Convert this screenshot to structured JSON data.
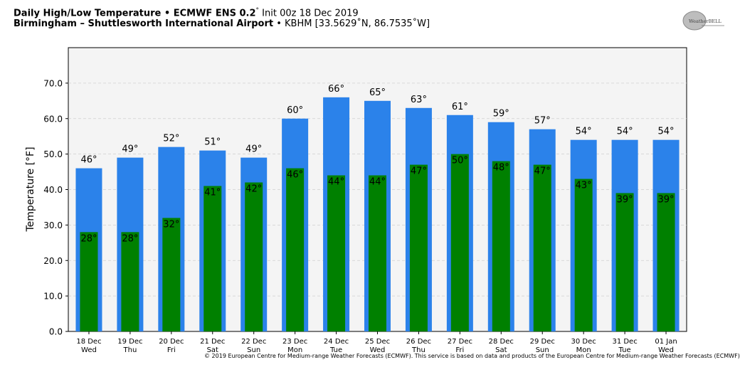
{
  "header": {
    "title_bold": "Daily High/Low Temperature • ECMWF ENS 0.2",
    "title_deg": "°",
    "title_init": "Init 00z 18 Dec 2019",
    "location_bold": "Birmingham – Shuttlesworth International Airport",
    "location_rest": "• KBHM [33.5629˚N, 86.7535˚W]"
  },
  "logo": {
    "text": "WeatherBELL"
  },
  "copyright": "© 2019 European Centre for Medium-range Weather Forecasts (ECMWF). This service is based on data and products of the European Centre for Medium-range Weather Forecasts (ECMWF)",
  "chart_data": {
    "type": "bar",
    "title": "Daily High/Low Temperature • ECMWF ENS 0.2° Init 00z 18 Dec 2019",
    "ylabel": "Temperature [°F]",
    "xlabel": "",
    "ylim": [
      0,
      80
    ],
    "yticks": [
      "0.0",
      "10.0",
      "20.0",
      "30.0",
      "40.0",
      "50.0",
      "60.0",
      "70.0"
    ],
    "grid": true,
    "categories": [
      {
        "date": "18 Dec",
        "day": "Wed"
      },
      {
        "date": "19 Dec",
        "day": "Thu"
      },
      {
        "date": "20 Dec",
        "day": "Fri"
      },
      {
        "date": "21 Dec",
        "day": "Sat"
      },
      {
        "date": "22 Dec",
        "day": "Sun"
      },
      {
        "date": "23 Dec",
        "day": "Mon"
      },
      {
        "date": "24 Dec",
        "day": "Tue"
      },
      {
        "date": "25 Dec",
        "day": "Wed"
      },
      {
        "date": "26 Dec",
        "day": "Thu"
      },
      {
        "date": "27 Dec",
        "day": "Fri"
      },
      {
        "date": "28 Dec",
        "day": "Sat"
      },
      {
        "date": "29 Dec",
        "day": "Sun"
      },
      {
        "date": "30 Dec",
        "day": "Mon"
      },
      {
        "date": "31 Dec",
        "day": "Tue"
      },
      {
        "date": "01 Jan",
        "day": "Wed"
      }
    ],
    "series": [
      {
        "key": "high",
        "color": "#2b82ea",
        "values": [
          46,
          49,
          52,
          51,
          49,
          60,
          66,
          65,
          63,
          61,
          59,
          57,
          54,
          54,
          54
        ],
        "labels": [
          "46°",
          "49°",
          "52°",
          "51°",
          "49°",
          "60°",
          "66°",
          "65°",
          "63°",
          "61°",
          "59°",
          "57°",
          "54°",
          "54°",
          "54°"
        ]
      },
      {
        "key": "low",
        "color": "#008000",
        "values": [
          28,
          28,
          32,
          41,
          42,
          46,
          44,
          44,
          47,
          50,
          48,
          47,
          43,
          39,
          39
        ],
        "labels": [
          "28°",
          "28°",
          "32°",
          "41°",
          "42°",
          "46°",
          "44°",
          "44°",
          "47°",
          "50°",
          "48°",
          "47°",
          "43°",
          "39°",
          "39°"
        ]
      }
    ],
    "colors": {
      "plot_background": "#f4f4f4",
      "grid": "#cfcfcf"
    }
  }
}
